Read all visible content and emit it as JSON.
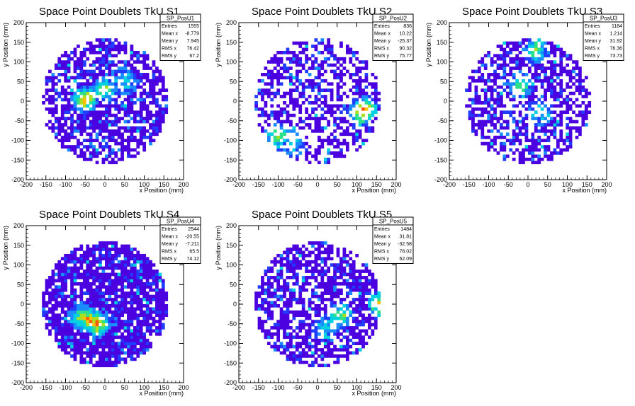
{
  "chart_data": [
    {
      "type": "heatmap",
      "title": "Space Point Doublets TkU S1",
      "xlabel": "x Position (mm)",
      "ylabel": "y Position (mm)",
      "xlim": [
        -200,
        200
      ],
      "ylim": [
        -200,
        200
      ],
      "xticks": [
        -200,
        -150,
        -100,
        -50,
        0,
        50,
        100,
        150,
        200
      ],
      "yticks": [
        -200,
        -150,
        -100,
        -50,
        0,
        50,
        100,
        150,
        200
      ],
      "stats": {
        "name": "SP_PosU1",
        "rows": [
          [
            "Entries",
            "1555"
          ],
          [
            "Mean x",
            "-8.779"
          ],
          [
            "Mean y",
            "7.945"
          ],
          [
            "RMS x",
            "76.42"
          ],
          [
            "RMS y",
            "67.2"
          ]
        ]
      },
      "entries": 1555,
      "hot": [
        [
          -50,
          5,
          3
        ],
        [
          0,
          30,
          2
        ],
        [
          50,
          50,
          1
        ]
      ]
    },
    {
      "type": "heatmap",
      "title": "Space Point Doublets TkU S2",
      "xlabel": "x Position (mm)",
      "ylabel": "y Position (mm)",
      "xlim": [
        -200,
        200
      ],
      "ylim": [
        -200,
        200
      ],
      "xticks": [
        -200,
        -150,
        -100,
        -50,
        0,
        50,
        100,
        150,
        200
      ],
      "yticks": [
        -200,
        -150,
        -100,
        -50,
        0,
        50,
        100,
        150,
        200
      ],
      "stats": {
        "name": "SP_PosU2",
        "rows": [
          [
            "Entries",
            "836"
          ],
          [
            "Mean x",
            "10.22"
          ],
          [
            "Mean y",
            "-25.37"
          ],
          [
            "RMS x",
            "90.32"
          ],
          [
            "RMS y",
            "75.77"
          ]
        ]
      },
      "entries": 836,
      "hot": [
        [
          120,
          -20,
          3
        ],
        [
          110,
          -30,
          3
        ],
        [
          -100,
          -90,
          2
        ],
        [
          -60,
          -110,
          1
        ]
      ]
    },
    {
      "type": "heatmap",
      "title": "Space Point Doublets TkU S3",
      "xlabel": "x Position (mm)",
      "ylabel": "y Position (mm)",
      "xlim": [
        -200,
        200
      ],
      "ylim": [
        -200,
        200
      ],
      "xticks": [
        -200,
        -150,
        -100,
        -50,
        0,
        50,
        100,
        150,
        200
      ],
      "yticks": [
        -200,
        -150,
        -100,
        -50,
        0,
        50,
        100,
        150,
        200
      ],
      "stats": {
        "name": "SP_PosU3",
        "rows": [
          [
            "Entries",
            "1184"
          ],
          [
            "Mean x",
            "1.214"
          ],
          [
            "Mean y",
            "31.92"
          ],
          [
            "RMS x",
            "76.36"
          ],
          [
            "RMS y",
            "73.73"
          ]
        ]
      },
      "entries": 1184,
      "hot": [
        [
          -20,
          40,
          2
        ],
        [
          20,
          130,
          2
        ],
        [
          30,
          -30,
          1
        ]
      ]
    },
    {
      "type": "heatmap",
      "title": "Space Point Doublets TkU S4",
      "xlabel": "x Position (mm)",
      "ylabel": "y Position (mm)",
      "xlim": [
        -200,
        200
      ],
      "ylim": [
        -200,
        200
      ],
      "xticks": [
        -200,
        -150,
        -100,
        -50,
        0,
        50,
        100,
        150,
        200
      ],
      "yticks": [
        -200,
        -150,
        -100,
        -50,
        0,
        50,
        100,
        150,
        200
      ],
      "stats": {
        "name": "SP_PosU4",
        "rows": [
          [
            "Entries",
            "2544"
          ],
          [
            "Mean x",
            "-20.55"
          ],
          [
            "Mean y",
            "-7.211"
          ],
          [
            "RMS x",
            "65.5"
          ],
          [
            "RMS y",
            "74.12"
          ]
        ]
      },
      "entries": 2544,
      "hot": [
        [
          -40,
          -40,
          3
        ],
        [
          -20,
          -50,
          3
        ],
        [
          -60,
          -30,
          2
        ]
      ]
    },
    {
      "type": "heatmap",
      "title": "Space Point Doublets TkU S5",
      "xlabel": "x Position (mm)",
      "ylabel": "y Position (mm)",
      "xlim": [
        -200,
        200
      ],
      "ylim": [
        -200,
        200
      ],
      "xticks": [
        -200,
        -150,
        -100,
        -50,
        0,
        50,
        100,
        150,
        200
      ],
      "yticks": [
        -200,
        -150,
        -100,
        -50,
        0,
        50,
        100,
        150,
        200
      ],
      "stats": {
        "name": "SP_PosU5",
        "rows": [
          [
            "Entries",
            "1484"
          ],
          [
            "Mean x",
            "31.81"
          ],
          [
            "Mean y",
            "-32.58"
          ],
          [
            "RMS x",
            "78.02"
          ],
          [
            "RMS y",
            "62.09"
          ]
        ]
      },
      "entries": 1484,
      "hot": [
        [
          160,
          0,
          3
        ],
        [
          60,
          -30,
          2
        ],
        [
          20,
          -60,
          1
        ]
      ]
    }
  ],
  "colors": {
    "palette": [
      "#4b00e0",
      "#1f3cff",
      "#1a8cff",
      "#00d0e0",
      "#2ee08a",
      "#a8e020",
      "#ffc000",
      "#ff5a00",
      "#e00000"
    ],
    "frame": "#000000",
    "background": "#ffffff"
  }
}
